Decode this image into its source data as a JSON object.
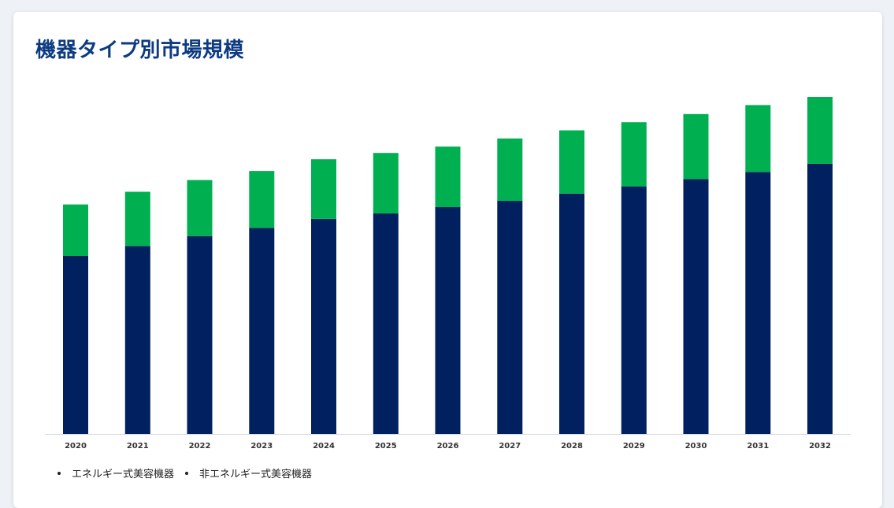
{
  "title": "機器タイプ別市場規模",
  "colors": {
    "title": "#0d3b82",
    "series_bottom": "#00205f",
    "series_top": "#00b050",
    "axis": "#d6d9e0"
  },
  "chart_data": {
    "type": "bar",
    "stacked": true,
    "categories": [
      "2020",
      "2021",
      "2022",
      "2023",
      "2024",
      "2025",
      "2026",
      "2027",
      "2028",
      "2029",
      "2030",
      "2031",
      "2032"
    ],
    "series": [
      {
        "name": "エネルギー式美容機器",
        "color": "#00205f",
        "values": [
          197,
          208,
          219,
          228,
          238,
          244,
          251,
          258,
          266,
          274,
          282,
          290,
          299
        ]
      },
      {
        "name": "非エネルギー式美容機器",
        "color": "#00b050",
        "values": [
          57,
          60,
          62,
          63,
          66,
          67,
          67,
          69,
          70,
          71,
          72,
          74,
          74
        ]
      }
    ],
    "ylim": [
      0,
      380
    ],
    "grid": false,
    "legend_position": "bottom-left"
  }
}
